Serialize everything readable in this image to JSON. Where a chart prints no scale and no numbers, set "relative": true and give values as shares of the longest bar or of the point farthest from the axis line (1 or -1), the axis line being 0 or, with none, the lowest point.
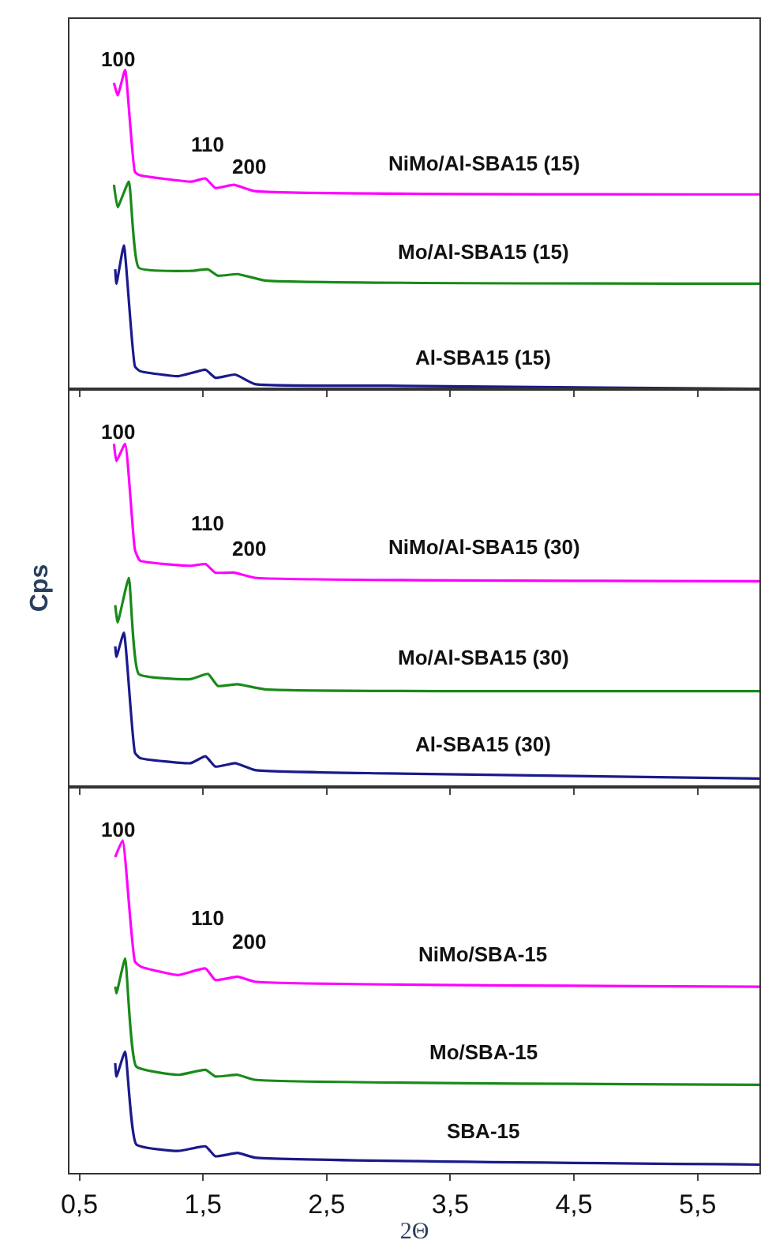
{
  "chart_data": [
    {
      "type": "line",
      "relative": true,
      "tick_labels": false,
      "grid": false,
      "marker": "none",
      "line_style": "solid",
      "xlim": [
        0.42,
        6.0
      ],
      "xticks": [
        {
          "value": 0.5,
          "label": null
        },
        {
          "value": 1.5,
          "label": null
        },
        {
          "value": 2.5,
          "label": null
        },
        {
          "value": 3.5,
          "label": null
        },
        {
          "value": 4.5,
          "label": null
        },
        {
          "value": 5.5,
          "label": null
        }
      ],
      "annotations": [
        "100",
        "110",
        "200"
      ],
      "series": [
        {
          "name": "NiMo/Al-SBA15 (15)",
          "color": "#ff00ff",
          "x": [
            0.78,
            0.81,
            0.87,
            0.95,
            0.99,
            1.41,
            1.52,
            1.6,
            1.75,
            1.92,
            6.0
          ],
          "values": [
            0.96,
            0.92,
            1.0,
            0.68,
            0.67,
            0.65,
            0.66,
            0.63,
            0.64,
            0.62,
            0.61
          ]
        },
        {
          "name": "Mo/Al-SBA15 (15)",
          "color": "#1a8a1a",
          "x": [
            0.78,
            0.81,
            0.9,
            0.98,
            1.4,
            1.54,
            1.62,
            1.78,
            2.0,
            6.0
          ],
          "values": [
            0.64,
            0.57,
            0.65,
            0.38,
            0.37,
            0.375,
            0.355,
            0.36,
            0.34,
            0.33
          ]
        },
        {
          "name": "Al-SBA15 (15)",
          "color": "#1a1a8c",
          "x": [
            0.79,
            0.8,
            0.86,
            0.95,
            0.99,
            1.3,
            1.52,
            1.6,
            1.76,
            1.92,
            3.0,
            6.0
          ],
          "values": [
            0.375,
            0.33,
            0.45,
            0.07,
            0.056,
            0.04,
            0.06,
            0.035,
            0.045,
            0.015,
            0.01,
            0.0
          ]
        }
      ]
    },
    {
      "type": "line",
      "relative": true,
      "tick_labels": false,
      "grid": false,
      "marker": "none",
      "line_style": "solid",
      "ylabel": "Cps",
      "xlim": [
        0.42,
        6.0
      ],
      "xticks": [
        {
          "value": 0.5,
          "label": null
        },
        {
          "value": 1.5,
          "label": null
        },
        {
          "value": 2.5,
          "label": null
        },
        {
          "value": 3.5,
          "label": null
        },
        {
          "value": 4.5,
          "label": null
        },
        {
          "value": 5.5,
          "label": null
        }
      ],
      "annotations": [
        "100",
        "110",
        "200"
      ],
      "series": [
        {
          "name": "NiMo/Al-SBA15 (30)",
          "color": "#ff00ff",
          "x": [
            0.78,
            0.8,
            0.87,
            0.95,
            0.99,
            1.4,
            1.52,
            1.6,
            1.75,
            1.92,
            6.0
          ],
          "values": [
            1.0,
            0.95,
            1.0,
            0.69,
            0.66,
            0.645,
            0.65,
            0.625,
            0.625,
            0.61,
            0.6
          ]
        },
        {
          "name": "Mo/Al-SBA15 (30)",
          "color": "#1a8a1a",
          "x": [
            0.79,
            0.81,
            0.9,
            0.98,
            1.4,
            1.54,
            1.62,
            1.78,
            2.0,
            6.0
          ],
          "values": [
            0.53,
            0.48,
            0.61,
            0.33,
            0.315,
            0.33,
            0.295,
            0.3,
            0.285,
            0.28
          ]
        },
        {
          "name": "Al-SBA15 (30)",
          "color": "#1a1a8c",
          "x": [
            0.79,
            0.8,
            0.86,
            0.95,
            0.99,
            1.4,
            1.52,
            1.6,
            1.76,
            1.92,
            3.0,
            6.0
          ],
          "values": [
            0.41,
            0.38,
            0.45,
            0.1,
            0.085,
            0.07,
            0.09,
            0.06,
            0.07,
            0.05,
            0.04,
            0.025
          ]
        }
      ]
    },
    {
      "type": "line",
      "relative": true,
      "tick_labels": "x",
      "grid": false,
      "marker": "none",
      "line_style": "solid",
      "xlabel": "2Θ",
      "xlim": [
        0.42,
        6.0
      ],
      "xticks": [
        {
          "value": 0.5,
          "label": "0,5"
        },
        {
          "value": 1.5,
          "label": "1,5"
        },
        {
          "value": 2.5,
          "label": "2,5"
        },
        {
          "value": 3.5,
          "label": "3,5"
        },
        {
          "value": 4.5,
          "label": "4,5"
        },
        {
          "value": 5.5,
          "label": "5,5"
        }
      ],
      "annotations": [
        "100",
        "110",
        "200"
      ],
      "series": [
        {
          "name": "NiMo/SBA-15",
          "color": "#ff00ff",
          "x": [
            0.79,
            0.85,
            0.95,
            1.0,
            1.3,
            1.52,
            1.6,
            1.78,
            1.92,
            6.0
          ],
          "values": [
            0.95,
            1.0,
            0.635,
            0.62,
            0.595,
            0.615,
            0.58,
            0.59,
            0.575,
            0.56
          ]
        },
        {
          "name": "Mo/SBA-15",
          "color": "#1a8a1a",
          "x": [
            0.79,
            0.8,
            0.87,
            0.96,
            1.3,
            1.52,
            1.6,
            1.78,
            1.92,
            6.0
          ],
          "values": [
            0.56,
            0.54,
            0.645,
            0.32,
            0.295,
            0.31,
            0.29,
            0.295,
            0.28,
            0.265
          ]
        },
        {
          "name": "SBA-15",
          "color": "#1a1a8c",
          "x": [
            0.79,
            0.8,
            0.87,
            0.96,
            1.3,
            1.52,
            1.6,
            1.78,
            1.92,
            6.0
          ],
          "values": [
            0.33,
            0.29,
            0.365,
            0.086,
            0.066,
            0.08,
            0.05,
            0.06,
            0.046,
            0.025
          ]
        }
      ]
    }
  ]
}
